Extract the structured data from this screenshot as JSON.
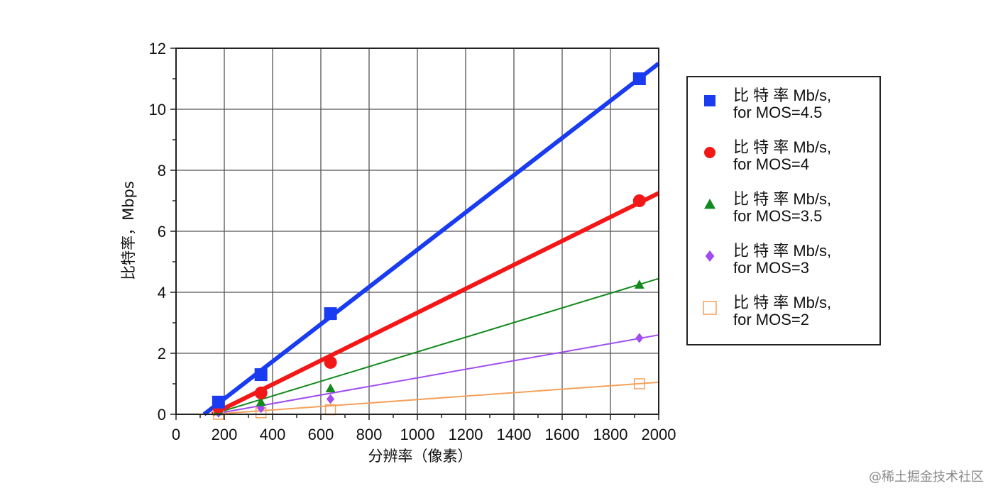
{
  "watermark": "@稀土掘金技术社区",
  "chart_data": {
    "type": "scatter",
    "xlabel": "分辨率（像素）",
    "ylabel": "比特率，Mbps",
    "xlim": [
      0,
      2000
    ],
    "ylim": [
      0,
      12
    ],
    "xticks": [
      "0",
      "200",
      "400",
      "600",
      "800",
      "1000",
      "1200",
      "1400",
      "1600",
      "1800",
      "2000"
    ],
    "yticks": [
      "0",
      "2",
      "4",
      "6",
      "8",
      "10",
      "12"
    ],
    "grid": true,
    "legend_position": "right",
    "series": [
      {
        "name_line1": "比 特 率 Mb/s,",
        "name_line2": "for MOS=4.5",
        "color": "#1a3cf0",
        "marker": "square",
        "x": [
          176,
          352,
          640,
          1920
        ],
        "y": [
          0.4,
          1.3,
          3.3,
          11.0
        ],
        "fit": [
          [
            100,
            -0.1
          ],
          [
            2000,
            11.5
          ]
        ],
        "fit_width": 6
      },
      {
        "name_line1": "比 特 率 Mb/s,",
        "name_line2": "for MOS=4",
        "color": "#f21818",
        "marker": "circle",
        "x": [
          176,
          352,
          640,
          1920
        ],
        "y": [
          0.25,
          0.7,
          1.7,
          7.0
        ],
        "fit": [
          [
            150,
            0.0
          ],
          [
            2000,
            7.25
          ]
        ],
        "fit_width": 6
      },
      {
        "name_line1": "比 特 率 Mb/s,",
        "name_line2": "for MOS=3.5",
        "color": "#138a1e",
        "marker": "triangle",
        "x": [
          176,
          352,
          640,
          1920
        ],
        "y": [
          0.1,
          0.4,
          0.85,
          4.25
        ],
        "fit": [
          [
            150,
            0.0
          ],
          [
            2000,
            4.45
          ]
        ],
        "fit_width": 2
      },
      {
        "name_line1": "比 特 率 Mb/s,",
        "name_line2": "for MOS=3",
        "color": "#a04df0",
        "marker": "diamond",
        "x": [
          176,
          352,
          640,
          1920
        ],
        "y": [
          0.05,
          0.2,
          0.5,
          2.5
        ],
        "fit": [
          [
            150,
            0.0
          ],
          [
            2000,
            2.6
          ]
        ],
        "fit_width": 2
      },
      {
        "name_line1": "比 特 率 Mb/s,",
        "name_line2": "for MOS=2",
        "color": "#f5a05a",
        "marker": "open-square",
        "x": [
          176,
          352,
          640,
          1920
        ],
        "y": [
          0.0,
          0.05,
          0.15,
          1.0
        ],
        "fit": [
          [
            150,
            0.0
          ],
          [
            2000,
            1.05
          ]
        ],
        "fit_width": 2
      }
    ]
  }
}
